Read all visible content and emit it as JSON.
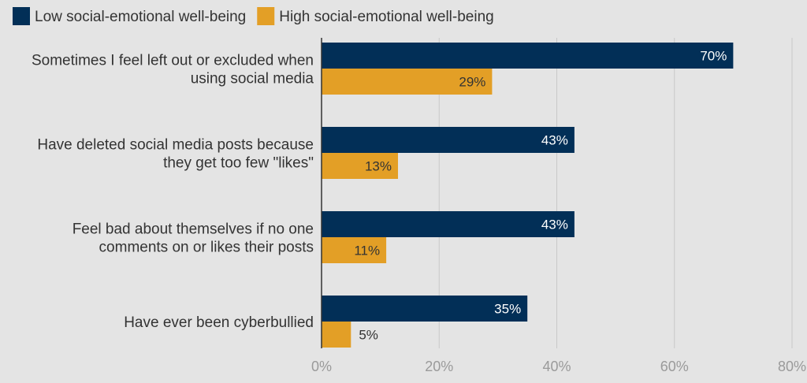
{
  "chart_data": {
    "type": "bar",
    "orientation": "horizontal",
    "title": "",
    "xlabel": "",
    "ylabel": "",
    "xlim": [
      0,
      80
    ],
    "x_ticks": [
      "0%",
      "20%",
      "40%",
      "60%",
      "80%"
    ],
    "x_tick_values": [
      0,
      20,
      40,
      60,
      80
    ],
    "grid": true,
    "legend_position": "top-left",
    "categories": [
      [
        "Sometimes I feel left out or excluded when",
        "using social media"
      ],
      [
        "Have deleted social media posts because",
        "they get too few \"likes\""
      ],
      [
        "Feel bad about themselves if no one",
        "comments on or likes their posts"
      ],
      [
        "Have ever been cyberbullied"
      ]
    ],
    "series": [
      {
        "name": "Low social-emotional well-being",
        "color": "#022f57",
        "values": [
          70,
          43,
          43,
          35
        ],
        "labels": [
          "70%",
          "43%",
          "43%",
          "35%"
        ]
      },
      {
        "name": "High social-emotional well-being",
        "color": "#e39f26",
        "values": [
          29,
          13,
          11,
          5
        ],
        "labels": [
          "29%",
          "13%",
          "11%",
          "5%"
        ]
      }
    ]
  }
}
